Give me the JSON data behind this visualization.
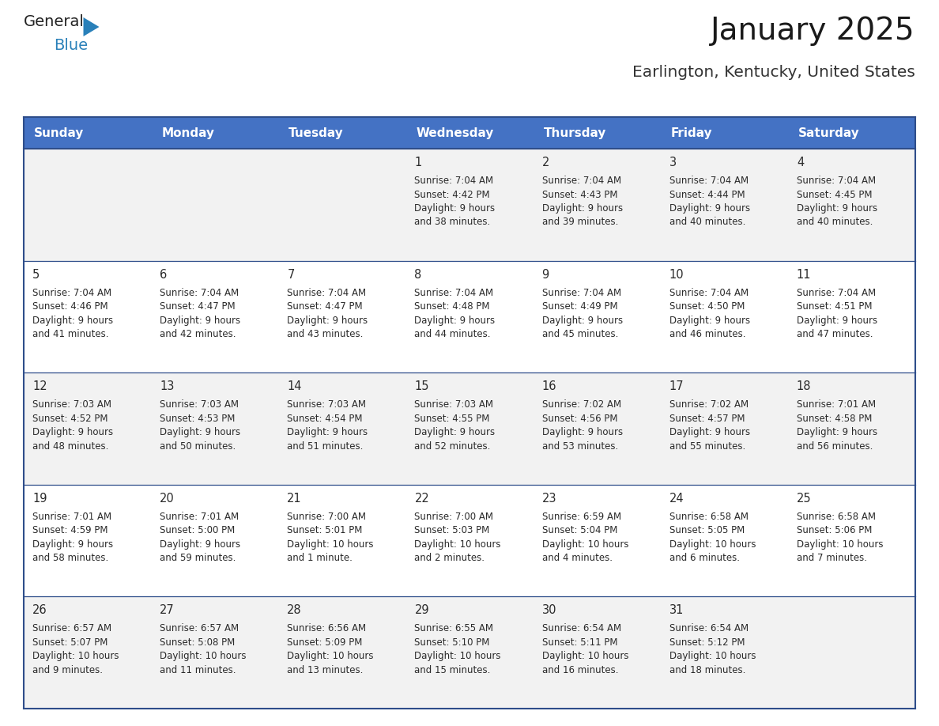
{
  "title": "January 2025",
  "subtitle": "Earlington, Kentucky, United States",
  "header_bg": "#4472C4",
  "header_text_color": "#FFFFFF",
  "cell_bg_even": "#F2F2F2",
  "cell_bg_odd": "#FFFFFF",
  "border_color": "#2E4D8A",
  "day_names": [
    "Sunday",
    "Monday",
    "Tuesday",
    "Wednesday",
    "Thursday",
    "Friday",
    "Saturday"
  ],
  "days": [
    {
      "day": 1,
      "col": 3,
      "row": 0,
      "sunrise": "7:04 AM",
      "sunset": "4:42 PM",
      "daylight": "9 hours and 38 minutes."
    },
    {
      "day": 2,
      "col": 4,
      "row": 0,
      "sunrise": "7:04 AM",
      "sunset": "4:43 PM",
      "daylight": "9 hours and 39 minutes."
    },
    {
      "day": 3,
      "col": 5,
      "row": 0,
      "sunrise": "7:04 AM",
      "sunset": "4:44 PM",
      "daylight": "9 hours and 40 minutes."
    },
    {
      "day": 4,
      "col": 6,
      "row": 0,
      "sunrise": "7:04 AM",
      "sunset": "4:45 PM",
      "daylight": "9 hours and 40 minutes."
    },
    {
      "day": 5,
      "col": 0,
      "row": 1,
      "sunrise": "7:04 AM",
      "sunset": "4:46 PM",
      "daylight": "9 hours and 41 minutes."
    },
    {
      "day": 6,
      "col": 1,
      "row": 1,
      "sunrise": "7:04 AM",
      "sunset": "4:47 PM",
      "daylight": "9 hours and 42 minutes."
    },
    {
      "day": 7,
      "col": 2,
      "row": 1,
      "sunrise": "7:04 AM",
      "sunset": "4:47 PM",
      "daylight": "9 hours and 43 minutes."
    },
    {
      "day": 8,
      "col": 3,
      "row": 1,
      "sunrise": "7:04 AM",
      "sunset": "4:48 PM",
      "daylight": "9 hours and 44 minutes."
    },
    {
      "day": 9,
      "col": 4,
      "row": 1,
      "sunrise": "7:04 AM",
      "sunset": "4:49 PM",
      "daylight": "9 hours and 45 minutes."
    },
    {
      "day": 10,
      "col": 5,
      "row": 1,
      "sunrise": "7:04 AM",
      "sunset": "4:50 PM",
      "daylight": "9 hours and 46 minutes."
    },
    {
      "day": 11,
      "col": 6,
      "row": 1,
      "sunrise": "7:04 AM",
      "sunset": "4:51 PM",
      "daylight": "9 hours and 47 minutes."
    },
    {
      "day": 12,
      "col": 0,
      "row": 2,
      "sunrise": "7:03 AM",
      "sunset": "4:52 PM",
      "daylight": "9 hours and 48 minutes."
    },
    {
      "day": 13,
      "col": 1,
      "row": 2,
      "sunrise": "7:03 AM",
      "sunset": "4:53 PM",
      "daylight": "9 hours and 50 minutes."
    },
    {
      "day": 14,
      "col": 2,
      "row": 2,
      "sunrise": "7:03 AM",
      "sunset": "4:54 PM",
      "daylight": "9 hours and 51 minutes."
    },
    {
      "day": 15,
      "col": 3,
      "row": 2,
      "sunrise": "7:03 AM",
      "sunset": "4:55 PM",
      "daylight": "9 hours and 52 minutes."
    },
    {
      "day": 16,
      "col": 4,
      "row": 2,
      "sunrise": "7:02 AM",
      "sunset": "4:56 PM",
      "daylight": "9 hours and 53 minutes."
    },
    {
      "day": 17,
      "col": 5,
      "row": 2,
      "sunrise": "7:02 AM",
      "sunset": "4:57 PM",
      "daylight": "9 hours and 55 minutes."
    },
    {
      "day": 18,
      "col": 6,
      "row": 2,
      "sunrise": "7:01 AM",
      "sunset": "4:58 PM",
      "daylight": "9 hours and 56 minutes."
    },
    {
      "day": 19,
      "col": 0,
      "row": 3,
      "sunrise": "7:01 AM",
      "sunset": "4:59 PM",
      "daylight": "9 hours and 58 minutes."
    },
    {
      "day": 20,
      "col": 1,
      "row": 3,
      "sunrise": "7:01 AM",
      "sunset": "5:00 PM",
      "daylight": "9 hours and 59 minutes."
    },
    {
      "day": 21,
      "col": 2,
      "row": 3,
      "sunrise": "7:00 AM",
      "sunset": "5:01 PM",
      "daylight": "10 hours and 1 minute."
    },
    {
      "day": 22,
      "col": 3,
      "row": 3,
      "sunrise": "7:00 AM",
      "sunset": "5:03 PM",
      "daylight": "10 hours and 2 minutes."
    },
    {
      "day": 23,
      "col": 4,
      "row": 3,
      "sunrise": "6:59 AM",
      "sunset": "5:04 PM",
      "daylight": "10 hours and 4 minutes."
    },
    {
      "day": 24,
      "col": 5,
      "row": 3,
      "sunrise": "6:58 AM",
      "sunset": "5:05 PM",
      "daylight": "10 hours and 6 minutes."
    },
    {
      "day": 25,
      "col": 6,
      "row": 3,
      "sunrise": "6:58 AM",
      "sunset": "5:06 PM",
      "daylight": "10 hours and 7 minutes."
    },
    {
      "day": 26,
      "col": 0,
      "row": 4,
      "sunrise": "6:57 AM",
      "sunset": "5:07 PM",
      "daylight": "10 hours and 9 minutes."
    },
    {
      "day": 27,
      "col": 1,
      "row": 4,
      "sunrise": "6:57 AM",
      "sunset": "5:08 PM",
      "daylight": "10 hours and 11 minutes."
    },
    {
      "day": 28,
      "col": 2,
      "row": 4,
      "sunrise": "6:56 AM",
      "sunset": "5:09 PM",
      "daylight": "10 hours and 13 minutes."
    },
    {
      "day": 29,
      "col": 3,
      "row": 4,
      "sunrise": "6:55 AM",
      "sunset": "5:10 PM",
      "daylight": "10 hours and 15 minutes."
    },
    {
      "day": 30,
      "col": 4,
      "row": 4,
      "sunrise": "6:54 AM",
      "sunset": "5:11 PM",
      "daylight": "10 hours and 16 minutes."
    },
    {
      "day": 31,
      "col": 5,
      "row": 4,
      "sunrise": "6:54 AM",
      "sunset": "5:12 PM",
      "daylight": "10 hours and 18 minutes."
    }
  ],
  "num_rows": 5,
  "num_cols": 7,
  "logo_general_color": "#222222",
  "logo_blue_color": "#2980B9",
  "logo_triangle_color": "#2980B9"
}
